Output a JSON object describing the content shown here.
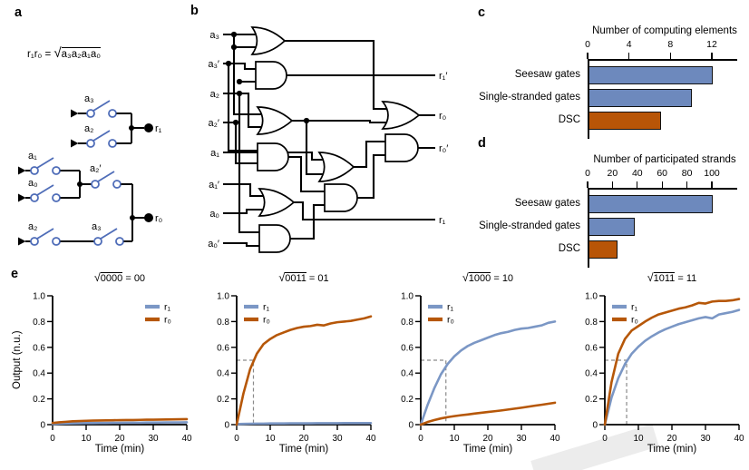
{
  "colors": {
    "bar_blue": "#6d89bd",
    "bar_orange": "#b85507",
    "line_blue": "#7b97c5",
    "line_orange": "#b65708",
    "switch_blue": "#4f6db8",
    "wire_black": "#000000",
    "guide_grey": "#8a8a8a"
  },
  "panel_labels": {
    "a": "a",
    "b": "b",
    "c": "c",
    "d": "d",
    "e": "e"
  },
  "a": {
    "formula_lhs": "r₁r₀ = ",
    "radical": "√",
    "radicand": "a₃a₂a₁a₀",
    "switches": {
      "s1": "a₃",
      "s2": "a₂",
      "s3": "a₁",
      "s4": "a₀",
      "s5": "a₂′",
      "s6": "a₂",
      "s7": "a₃"
    },
    "outputs": {
      "r1": "r₁",
      "r0": "r₀"
    }
  },
  "b": {
    "inputs": [
      "a₃",
      "a₃′",
      "a₂",
      "a₂′",
      "a₁",
      "a₁′",
      "a₀",
      "a₀′"
    ],
    "outputs": [
      "r₁′",
      "r₀",
      "r₀′",
      "r₁"
    ]
  },
  "chart_data": [
    {
      "id": "c",
      "type": "bar",
      "orientation": "horizontal",
      "title": "Number of computing elements",
      "categories": [
        "Seesaw gates",
        "Single-stranded gates",
        "DSC"
      ],
      "values": [
        12,
        10,
        7
      ],
      "bar_colors": [
        "#6d89bd",
        "#6d89bd",
        "#b85507"
      ],
      "ticks": [
        0,
        4,
        8,
        12
      ],
      "xlim": [
        0,
        14
      ]
    },
    {
      "id": "d",
      "type": "bar",
      "orientation": "horizontal",
      "title": "Number of participated strands",
      "categories": [
        "Seesaw gates",
        "Single-stranded gates",
        "DSC"
      ],
      "values": [
        100,
        37,
        23
      ],
      "bar_colors": [
        "#6d89bd",
        "#6d89bd",
        "#b85507"
      ],
      "ticks": [
        0,
        20,
        40,
        60,
        80,
        100
      ],
      "xlim": [
        0,
        115
      ]
    },
    {
      "id": "e1",
      "type": "line",
      "title_sqrt": "√",
      "title_radicand": "0000",
      "title_eq": " = ",
      "title_result": "00",
      "xlabel": "Time (min)",
      "ylabel": "Output (n.u.)",
      "xlim": [
        0,
        40
      ],
      "ylim": [
        0,
        1
      ],
      "xticks": [
        0,
        10,
        20,
        30,
        40
      ],
      "yticks": [
        0,
        0.2,
        0.4,
        0.6,
        0.8,
        1
      ],
      "legend_pos": "top-right",
      "guide": null,
      "x": [
        0,
        2,
        4,
        6,
        8,
        10,
        12,
        14,
        16,
        18,
        20,
        22,
        24,
        26,
        28,
        30,
        32,
        34,
        36,
        38,
        40
      ],
      "series": [
        {
          "name": "r₁",
          "color": "#7b97c5",
          "values": [
            0.005,
            0.007,
            0.009,
            0.01,
            0.011,
            0.012,
            0.012,
            0.013,
            0.013,
            0.014,
            0.014,
            0.015,
            0.015,
            0.015,
            0.016,
            0.016,
            0.016,
            0.017,
            0.017,
            0.017,
            0.018
          ]
        },
        {
          "name": "r₀",
          "color": "#b65708",
          "values": [
            0.013,
            0.018,
            0.022,
            0.026,
            0.028,
            0.03,
            0.031,
            0.032,
            0.033,
            0.034,
            0.035,
            0.036,
            0.036,
            0.037,
            0.038,
            0.038,
            0.039,
            0.04,
            0.041,
            0.042,
            0.043
          ]
        }
      ]
    },
    {
      "id": "e2",
      "type": "line",
      "title_sqrt": "√",
      "title_radicand": "0011",
      "title_eq": " = ",
      "title_result": "01",
      "xlabel": "Time (min)",
      "ylabel": "",
      "xlim": [
        0,
        40
      ],
      "ylim": [
        0,
        1
      ],
      "xticks": [
        0,
        10,
        20,
        30,
        40
      ],
      "yticks": [
        0,
        0.2,
        0.4,
        0.6,
        0.8,
        1
      ],
      "legend_pos": "top-left",
      "guide": {
        "x": 5,
        "y": 0.5
      },
      "x": [
        0,
        2,
        4,
        6,
        8,
        10,
        12,
        14,
        16,
        18,
        20,
        22,
        24,
        26,
        28,
        30,
        32,
        34,
        36,
        38,
        40
      ],
      "series": [
        {
          "name": "r₁",
          "color": "#7b97c5",
          "values": [
            0.004,
            0.006,
            0.007,
            0.008,
            0.008,
            0.009,
            0.009,
            0.009,
            0.01,
            0.01,
            0.01,
            0.01,
            0.011,
            0.011,
            0.011,
            0.011,
            0.012,
            0.012,
            0.012,
            0.012,
            0.012
          ]
        },
        {
          "name": "r₀",
          "color": "#b65708",
          "values": [
            0,
            0.24,
            0.43,
            0.55,
            0.625,
            0.665,
            0.695,
            0.715,
            0.735,
            0.75,
            0.76,
            0.765,
            0.775,
            0.77,
            0.785,
            0.795,
            0.8,
            0.805,
            0.815,
            0.825,
            0.84
          ]
        }
      ]
    },
    {
      "id": "e3",
      "type": "line",
      "title_sqrt": "√",
      "title_radicand": "1000",
      "title_eq": " = ",
      "title_result": "10",
      "xlabel": "Time (min)",
      "ylabel": "",
      "xlim": [
        0,
        40
      ],
      "ylim": [
        0,
        1
      ],
      "xticks": [
        0,
        10,
        20,
        30,
        40
      ],
      "yticks": [
        0,
        0.2,
        0.4,
        0.6,
        0.8,
        1
      ],
      "legend_pos": "top-left",
      "guide": {
        "x": 7.5,
        "y": 0.5
      },
      "x": [
        0,
        2,
        4,
        6,
        8,
        10,
        12,
        14,
        16,
        18,
        20,
        22,
        24,
        26,
        28,
        30,
        32,
        34,
        36,
        38,
        40
      ],
      "series": [
        {
          "name": "r₁",
          "color": "#7b97c5",
          "values": [
            0,
            0.15,
            0.28,
            0.39,
            0.47,
            0.53,
            0.575,
            0.61,
            0.635,
            0.655,
            0.675,
            0.695,
            0.71,
            0.72,
            0.735,
            0.745,
            0.75,
            0.76,
            0.77,
            0.79,
            0.8
          ]
        },
        {
          "name": "r₀",
          "color": "#b65708",
          "values": [
            0,
            0.02,
            0.035,
            0.048,
            0.058,
            0.066,
            0.073,
            0.079,
            0.086,
            0.092,
            0.098,
            0.104,
            0.11,
            0.117,
            0.124,
            0.131,
            0.139,
            0.147,
            0.154,
            0.162,
            0.17
          ]
        }
      ]
    },
    {
      "id": "e4",
      "type": "line",
      "title_sqrt": "√",
      "title_radicand": "1011",
      "title_eq": " = ",
      "title_result": "11",
      "xlabel": "Time (min)",
      "ylabel": "",
      "xlim": [
        0,
        40
      ],
      "ylim": [
        0,
        1
      ],
      "xticks": [
        0,
        10,
        20,
        30,
        40
      ],
      "yticks": [
        0,
        0.2,
        0.4,
        0.6,
        0.8,
        1
      ],
      "legend_pos": "top-left",
      "guide": {
        "x": 6.5,
        "y": 0.5
      },
      "x": [
        0,
        2,
        4,
        6,
        8,
        10,
        12,
        14,
        16,
        18,
        20,
        22,
        24,
        26,
        28,
        30,
        32,
        34,
        36,
        38,
        40
      ],
      "series": [
        {
          "name": "r₁",
          "color": "#7b97c5",
          "values": [
            0,
            0.21,
            0.36,
            0.47,
            0.55,
            0.605,
            0.65,
            0.685,
            0.715,
            0.74,
            0.76,
            0.78,
            0.795,
            0.81,
            0.825,
            0.835,
            0.825,
            0.855,
            0.865,
            0.875,
            0.89
          ]
        },
        {
          "name": "r₀",
          "color": "#b65708",
          "values": [
            0,
            0.33,
            0.55,
            0.665,
            0.73,
            0.765,
            0.8,
            0.83,
            0.855,
            0.87,
            0.885,
            0.9,
            0.91,
            0.925,
            0.945,
            0.94,
            0.955,
            0.96,
            0.96,
            0.965,
            0.975
          ]
        }
      ]
    }
  ]
}
